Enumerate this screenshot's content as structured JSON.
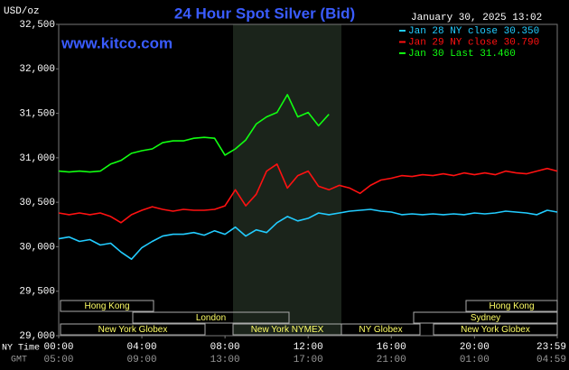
{
  "chart_data": {
    "type": "line",
    "title": "24 Hour Spot Silver (Bid)",
    "source": "www.kitco.com",
    "y_label": "USD/oz",
    "timestamp": "January 30, 2025 13:02",
    "x_label": "NY Time",
    "x2_label": "GMT",
    "x": [
      0,
      0.5,
      1,
      1.5,
      2,
      2.5,
      3,
      3.5,
      4,
      4.5,
      5,
      5.5,
      6,
      6.5,
      7,
      7.5,
      8,
      8.5,
      9,
      9.5,
      10,
      10.5,
      11,
      11.5,
      12,
      12.5,
      13,
      13.5,
      14,
      14.5,
      15,
      15.5,
      16,
      16.5,
      17,
      17.5,
      18,
      18.5,
      19,
      19.5,
      20,
      20.5,
      21,
      21.5,
      22,
      22.5,
      23,
      23.5,
      23.983
    ],
    "xlim": [
      0,
      23.983
    ],
    "xticks": [
      {
        "value": 0,
        "label": "00:00"
      },
      {
        "value": 4,
        "label": "04:00"
      },
      {
        "value": 8,
        "label": "08:00"
      },
      {
        "value": 12,
        "label": "12:00"
      },
      {
        "value": 16,
        "label": "16:00"
      },
      {
        "value": 20,
        "label": "20:00"
      },
      {
        "value": 23.983,
        "label": "23:59"
      }
    ],
    "x2_tick_labels": [
      "05:00",
      "09:00",
      "13:00",
      "17:00",
      "21:00",
      "01:00",
      "04:59"
    ],
    "ylim": [
      29000,
      32500
    ],
    "yticks": [
      {
        "value": 29000,
        "label": "29,000"
      },
      {
        "value": 29500,
        "label": "29,500"
      },
      {
        "value": 30000,
        "label": "30,000"
      },
      {
        "value": 30500,
        "label": "30,500"
      },
      {
        "value": 31000,
        "label": "31,000"
      },
      {
        "value": 31500,
        "label": "31,500"
      },
      {
        "value": 32000,
        "label": "32,000"
      },
      {
        "value": 32500,
        "label": "32,500"
      }
    ],
    "sessions": [
      "Hong Kong",
      "London",
      "New York Globex",
      "New York NYMEX",
      "NY Globex",
      "Hong Kong",
      "Sydney",
      "New York Globex"
    ],
    "series": [
      {
        "name": "Jan 28 NY close 30.350",
        "color": "#22ccff",
        "values": [
          30090,
          30110,
          30060,
          30080,
          30020,
          30040,
          29940,
          29860,
          29990,
          30060,
          30120,
          30140,
          30140,
          30160,
          30130,
          30180,
          30140,
          30220,
          30120,
          30190,
          30160,
          30270,
          30340,
          30290,
          30320,
          30380,
          30360,
          30380,
          30400,
          30410,
          30420,
          30400,
          30390,
          30360,
          30370,
          30360,
          30370,
          30360,
          30370,
          30360,
          30380,
          30370,
          30380,
          30400,
          30390,
          30380,
          30360,
          30410,
          30390
        ]
      },
      {
        "name": "Jan 29 NY close 30.790",
        "color": "#ff1111",
        "values": [
          30380,
          30360,
          30380,
          30360,
          30380,
          30340,
          30270,
          30360,
          30410,
          30450,
          30420,
          30400,
          30420,
          30410,
          30410,
          30420,
          30460,
          30640,
          30460,
          30590,
          30850,
          30930,
          30660,
          30800,
          30850,
          30680,
          30640,
          30690,
          30660,
          30600,
          30690,
          30750,
          30770,
          30800,
          30790,
          30810,
          30800,
          30820,
          30800,
          30830,
          30810,
          30830,
          30810,
          30850,
          30830,
          30820,
          30850,
          30880,
          30850
        ]
      },
      {
        "name": "Jan 30 Last 31.460",
        "color": "#11ff11",
        "values": [
          30850,
          30840,
          30850,
          30840,
          30850,
          30930,
          30970,
          31050,
          31080,
          31100,
          31170,
          31190,
          31190,
          31220,
          31230,
          31220,
          31030,
          31100,
          31200,
          31380,
          31460,
          31510,
          31710,
          31460,
          31510,
          31360,
          31490,
          null,
          null,
          null,
          null,
          null,
          null,
          null,
          null,
          null,
          null,
          null,
          null,
          null,
          null,
          null,
          null,
          null,
          null,
          null,
          null,
          null,
          null
        ]
      }
    ]
  }
}
